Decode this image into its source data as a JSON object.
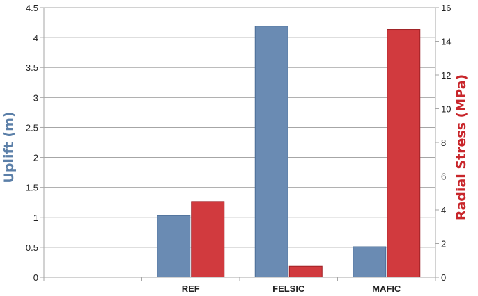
{
  "chart_data": {
    "type": "bar",
    "categories": [
      "REF",
      "FELSIC",
      "MAFIC"
    ],
    "series": [
      {
        "values": [
          1.03,
          4.19,
          0.51
        ],
        "axis": "left",
        "color": "#6a8bb3"
      },
      {
        "values": [
          4.5,
          0.65,
          14.7
        ],
        "axis": "right",
        "color": "#d13a3e"
      }
    ],
    "ylabel": "Uplift (m)",
    "y2label": "Radial Stress (MPa)",
    "ylim": [
      0,
      4.5
    ],
    "y2lim": [
      0,
      16
    ],
    "yticks": [
      "0",
      "0.5",
      "1",
      "1.5",
      "2",
      "2.5",
      "3",
      "3.5",
      "4",
      "4.5"
    ],
    "y2ticks": [
      "0",
      "2",
      "4",
      "6",
      "8",
      "10",
      "12",
      "14",
      "16"
    ],
    "grid": true,
    "ylabel_color": "#5b7fa8",
    "y2label_color": "#c8262b"
  }
}
